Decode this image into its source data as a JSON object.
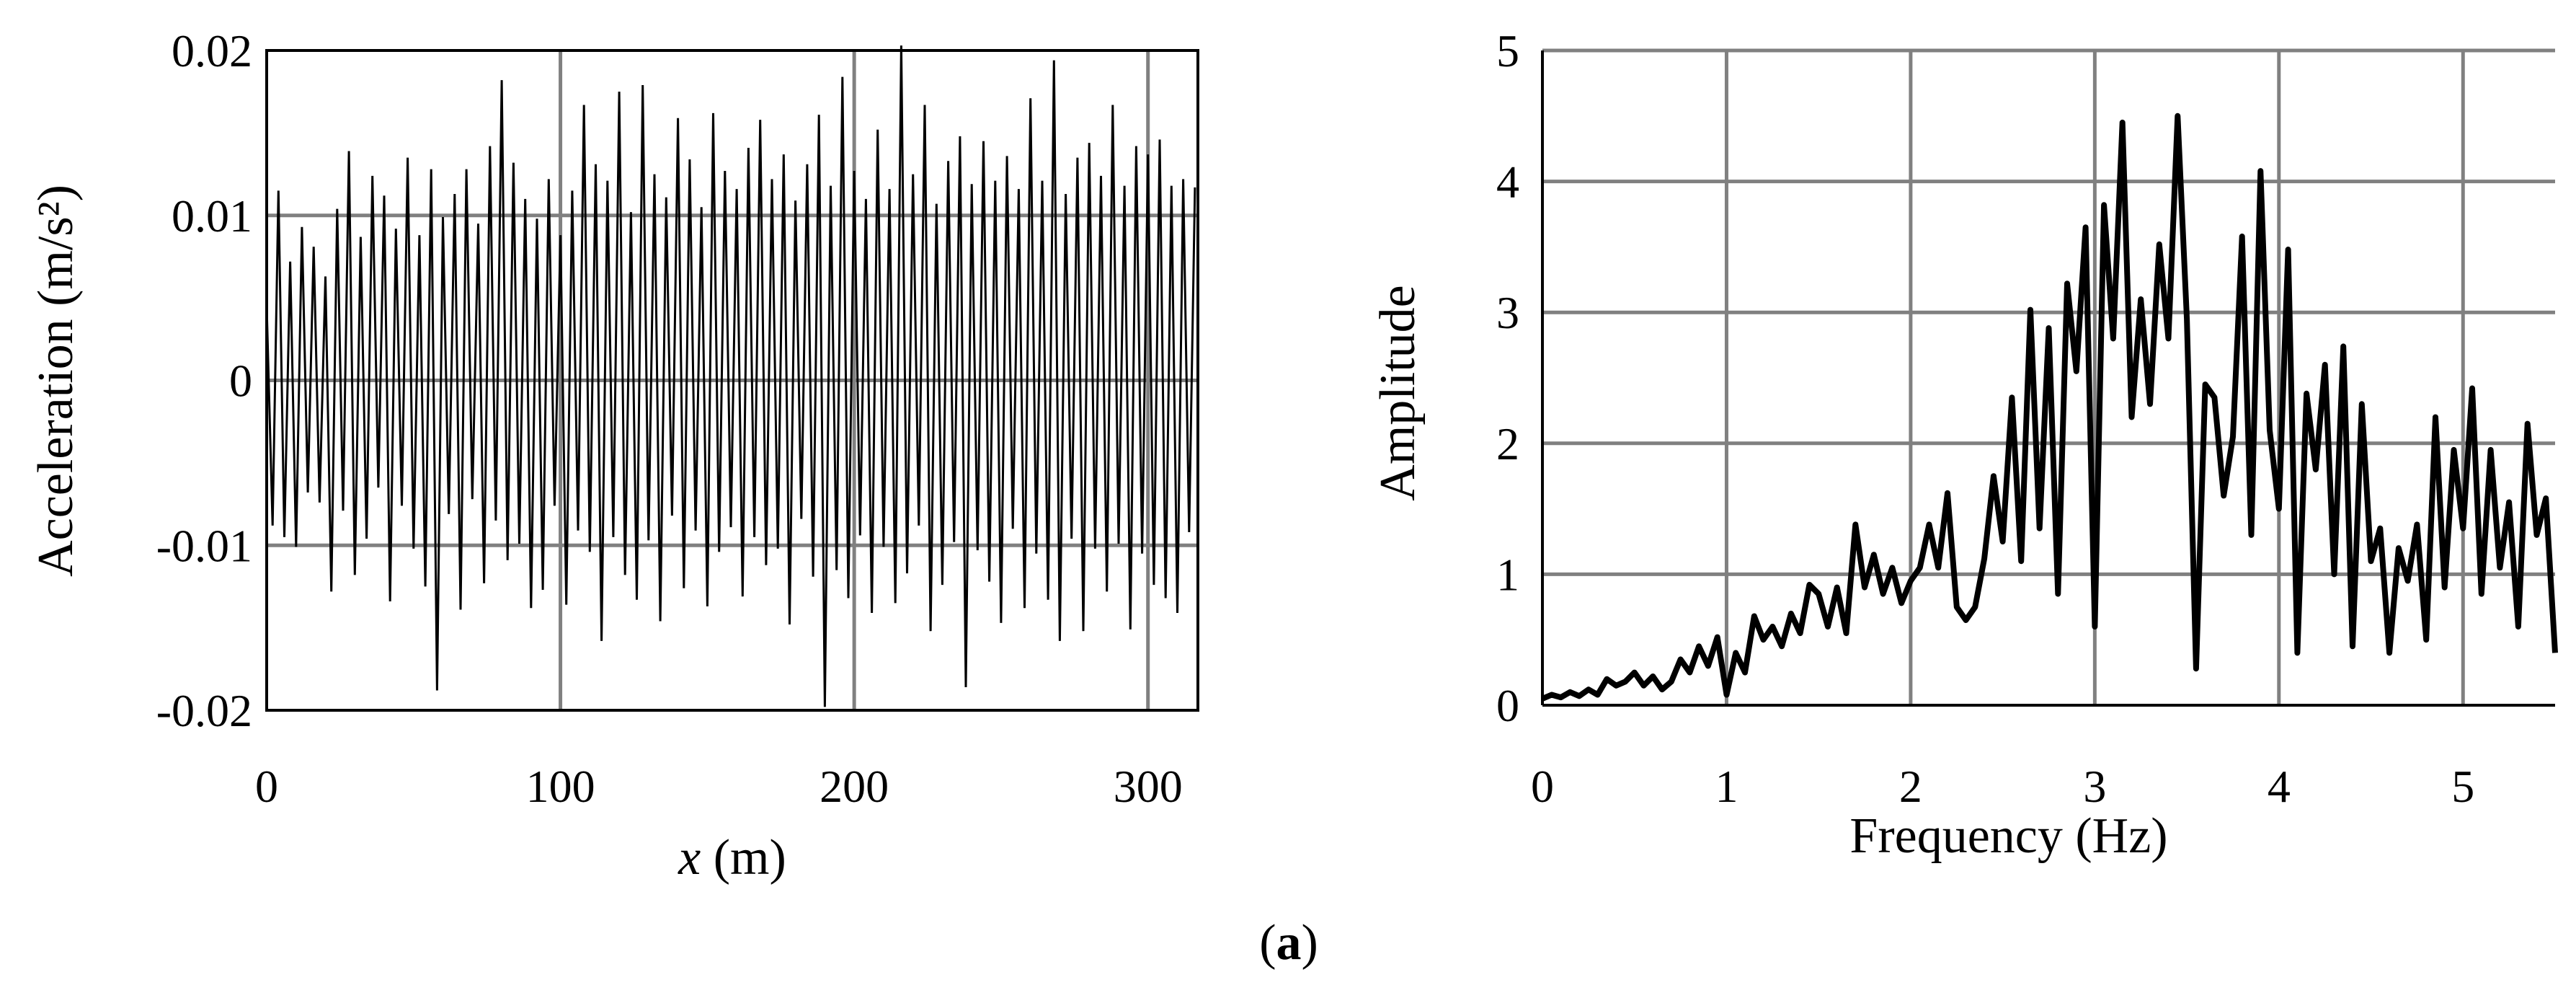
{
  "caption": {
    "prefix": "(",
    "letter": "a",
    "suffix": ")"
  },
  "chart_data": [
    {
      "type": "line",
      "title": "",
      "xlabel": {
        "var": "x",
        "unit": " (m)"
      },
      "ylabel": "Acceleration (m/s²)",
      "xlim": [
        0,
        317
      ],
      "ylim": [
        -0.02,
        0.02
      ],
      "xticks": [
        0,
        100,
        200,
        300
      ],
      "xtick_labels": [
        "0",
        "100",
        "200",
        "300"
      ],
      "yticks": [
        0.02,
        0.01,
        0,
        -0.01,
        -0.02
      ],
      "ytick_labels": [
        "0.02",
        "0.01",
        "0",
        "-0.01",
        "-0.02"
      ],
      "grid": true,
      "legend": "none",
      "line_color": "#000000",
      "grid_color": "#808080",
      "series": [
        {
          "x": [
            0,
            2,
            4,
            6,
            8,
            10,
            12,
            14,
            16,
            18,
            20,
            22,
            24,
            26,
            28,
            30,
            32,
            34,
            36,
            38,
            40,
            42,
            44,
            46,
            48,
            50,
            52,
            54,
            56,
            58,
            60,
            62,
            64,
            66,
            68,
            70,
            72,
            74,
            76,
            78,
            80,
            82,
            84,
            86,
            88,
            90,
            92,
            94,
            96,
            98,
            100,
            102,
            104,
            106,
            108,
            110,
            112,
            114,
            116,
            118,
            120,
            122,
            124,
            126,
            128,
            130,
            132,
            134,
            136,
            138,
            140,
            142,
            144,
            146,
            148,
            150,
            152,
            154,
            156,
            158,
            160,
            162,
            164,
            166,
            168,
            170,
            172,
            174,
            176,
            178,
            180,
            182,
            184,
            186,
            188,
            190,
            192,
            194,
            196,
            198,
            200,
            202,
            204,
            206,
            208,
            210,
            212,
            214,
            216,
            218,
            220,
            222,
            224,
            226,
            228,
            230,
            232,
            234,
            236,
            238,
            240,
            242,
            244,
            246,
            248,
            250,
            252,
            254,
            256,
            258,
            260,
            262,
            264,
            266,
            268,
            270,
            272,
            274,
            276,
            278,
            280,
            282,
            284,
            286,
            288,
            290,
            292,
            294,
            296,
            298,
            300,
            302,
            304,
            306,
            308,
            310,
            312,
            314,
            316
          ],
          "values": [
            0.0045,
            -0.0088,
            0.0115,
            -0.0095,
            0.0072,
            -0.0101,
            0.0093,
            -0.0068,
            0.0081,
            -0.0074,
            0.0063,
            -0.0128,
            0.0104,
            -0.0079,
            0.0139,
            -0.0118,
            0.0087,
            -0.0096,
            0.0124,
            -0.0065,
            0.0112,
            -0.0134,
            0.0092,
            -0.0076,
            0.0135,
            -0.0102,
            0.0088,
            -0.0125,
            0.0128,
            -0.0188,
            0.0099,
            -0.0081,
            0.0113,
            -0.0139,
            0.0128,
            -0.0072,
            0.0095,
            -0.0123,
            0.0142,
            -0.0085,
            0.0182,
            -0.0109,
            0.0132,
            -0.0099,
            0.011,
            -0.0138,
            0.0098,
            -0.0127,
            0.0122,
            -0.0076,
            0.0088,
            -0.0136,
            0.0115,
            -0.0091,
            0.0167,
            -0.0104,
            0.0131,
            -0.0158,
            0.0121,
            -0.0095,
            0.0175,
            -0.0118,
            0.0102,
            -0.0133,
            0.0179,
            -0.0097,
            0.0125,
            -0.0146,
            0.0111,
            -0.0082,
            0.0159,
            -0.0126,
            0.0134,
            -0.0091,
            0.0105,
            -0.0137,
            0.0162,
            -0.0104,
            0.0127,
            -0.0089,
            0.0116,
            -0.0131,
            0.0141,
            -0.0095,
            0.0158,
            -0.0112,
            0.0122,
            -0.0102,
            0.0137,
            -0.0148,
            0.0109,
            -0.0084,
            0.0131,
            -0.0119,
            0.0161,
            -0.0198,
            0.0118,
            -0.0115,
            0.0184,
            -0.0132,
            0.0127,
            -0.0094,
            0.011,
            -0.0141,
            0.0152,
            -0.0101,
            0.0116,
            -0.0135,
            0.0203,
            -0.0117,
            0.0125,
            -0.0088,
            0.0167,
            -0.0152,
            0.0107,
            -0.0124,
            0.0133,
            -0.0098,
            0.0148,
            -0.0186,
            0.0119,
            -0.0103,
            0.0145,
            -0.0122,
            0.0121,
            -0.0147,
            0.0136,
            -0.009,
            0.0116,
            -0.0138,
            0.0171,
            -0.0105,
            0.0121,
            -0.0133,
            0.0194,
            -0.0158,
            0.0113,
            -0.0096,
            0.0135,
            -0.0152,
            0.0144,
            -0.0102,
            0.0124,
            -0.0128,
            0.0167,
            -0.0099,
            0.0118,
            -0.0151,
            0.0142,
            -0.0105,
            0.0137,
            -0.0124,
            0.0146,
            -0.0132,
            0.0118,
            -0.0141,
            0.0122,
            -0.0092,
            0.0117
          ]
        }
      ]
    },
    {
      "type": "line",
      "title": "",
      "xlabel": "Frequency (Hz)",
      "ylabel": "Amplitude",
      "xlim": [
        0,
        5.5
      ],
      "ylim": [
        0,
        5
      ],
      "xticks": [
        0,
        1,
        2,
        3,
        4,
        5
      ],
      "xtick_labels": [
        "0",
        "1",
        "2",
        "3",
        "4",
        "5"
      ],
      "yticks": [
        0,
        1,
        2,
        3,
        4,
        5
      ],
      "ytick_labels": [
        "0",
        "1",
        "2",
        "3",
        "4",
        "5"
      ],
      "grid": true,
      "legend": "none",
      "line_color": "#000000",
      "grid_color": "#808080",
      "series": [
        {
          "x": [
            0.0,
            0.05,
            0.1,
            0.15,
            0.2,
            0.25,
            0.3,
            0.35,
            0.4,
            0.45,
            0.5,
            0.55,
            0.6,
            0.65,
            0.7,
            0.75,
            0.8,
            0.85,
            0.9,
            0.95,
            1.0,
            1.05,
            1.1,
            1.15,
            1.2,
            1.25,
            1.3,
            1.35,
            1.4,
            1.45,
            1.5,
            1.55,
            1.6,
            1.65,
            1.7,
            1.75,
            1.8,
            1.85,
            1.9,
            1.95,
            2.0,
            2.05,
            2.1,
            2.15,
            2.2,
            2.25,
            2.3,
            2.35,
            2.4,
            2.45,
            2.5,
            2.55,
            2.6,
            2.65,
            2.7,
            2.75,
            2.8,
            2.85,
            2.9,
            2.95,
            3.0,
            3.05,
            3.1,
            3.15,
            3.2,
            3.25,
            3.3,
            3.35,
            3.4,
            3.45,
            3.5,
            3.55,
            3.6,
            3.65,
            3.7,
            3.75,
            3.8,
            3.85,
            3.9,
            3.95,
            4.0,
            4.05,
            4.1,
            4.15,
            4.2,
            4.25,
            4.3,
            4.35,
            4.4,
            4.45,
            4.5,
            4.55,
            4.6,
            4.65,
            4.7,
            4.75,
            4.8,
            4.85,
            4.9,
            4.95,
            5.0,
            5.05,
            5.1,
            5.15,
            5.2,
            5.25,
            5.3,
            5.35,
            5.4,
            5.45,
            5.5
          ],
          "values": [
            0.05,
            0.08,
            0.06,
            0.1,
            0.07,
            0.12,
            0.08,
            0.2,
            0.15,
            0.18,
            0.25,
            0.15,
            0.22,
            0.12,
            0.18,
            0.35,
            0.25,
            0.45,
            0.3,
            0.52,
            0.08,
            0.4,
            0.25,
            0.68,
            0.5,
            0.6,
            0.45,
            0.7,
            0.55,
            0.92,
            0.85,
            0.6,
            0.9,
            0.55,
            1.38,
            0.9,
            1.15,
            0.85,
            1.05,
            0.78,
            0.95,
            1.05,
            1.38,
            1.05,
            1.62,
            0.75,
            0.65,
            0.75,
            1.12,
            1.75,
            1.25,
            2.35,
            1.1,
            3.02,
            1.35,
            2.88,
            0.85,
            3.22,
            2.55,
            3.65,
            0.6,
            3.82,
            2.8,
            4.45,
            2.2,
            3.1,
            2.3,
            3.52,
            2.8,
            4.5,
            2.95,
            0.28,
            2.45,
            2.35,
            1.6,
            2.05,
            3.58,
            1.3,
            4.08,
            2.1,
            1.5,
            3.48,
            0.4,
            2.38,
            1.8,
            2.6,
            1.0,
            2.74,
            0.45,
            2.3,
            1.1,
            1.35,
            0.4,
            1.2,
            0.95,
            1.38,
            0.5,
            2.2,
            0.9,
            1.95,
            1.35,
            2.42,
            0.85,
            1.95,
            1.05,
            1.55,
            0.6,
            2.15,
            1.3,
            1.58,
            0.4
          ]
        }
      ]
    }
  ]
}
